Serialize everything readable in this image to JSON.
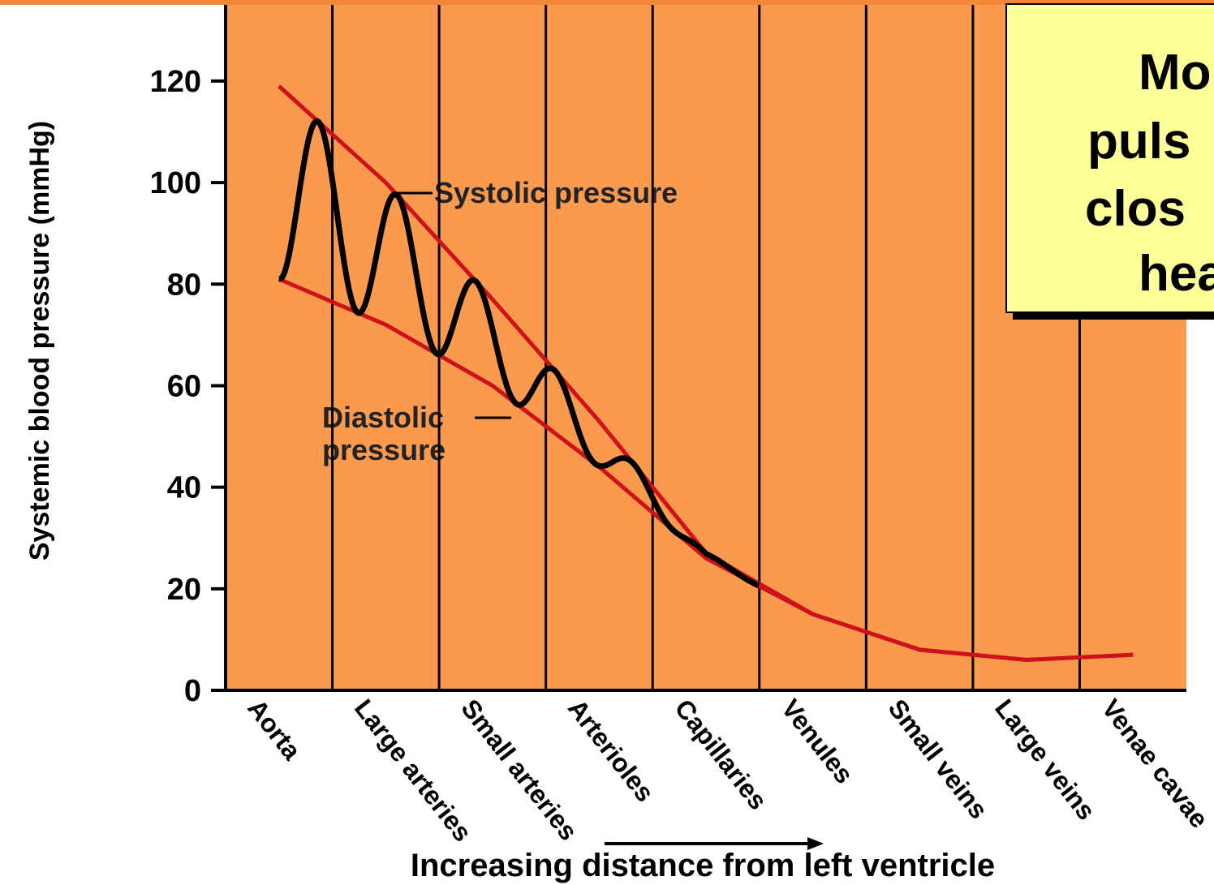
{
  "chart_data": {
    "type": "line",
    "categories": [
      "Aorta",
      "Large arteries",
      "Small arteries",
      "Arterioles",
      "Capillaries",
      "Venules",
      "Small veins",
      "Large veins",
      "Venae cavae"
    ],
    "series": [
      {
        "name": "Systolic pressure",
        "color": "#d0101a",
        "values": [
          119,
          100,
          77,
          53,
          27,
          15,
          8,
          6,
          7
        ]
      },
      {
        "name": "Diastolic pressure",
        "color": "#d0101a",
        "values": [
          81,
          72,
          60,
          44,
          26,
          15,
          8,
          6,
          7
        ]
      }
    ],
    "ylim": [
      0,
      135
    ],
    "yticks": [
      0,
      20,
      40,
      60,
      80,
      100,
      120
    ],
    "y_label": "Systemic blood pressure (mmHg)",
    "x_label": "Increasing distance from left ventricle",
    "annotations": {
      "systolic": "Systolic pressure",
      "diastolic": [
        "Diastolic",
        "pressure"
      ]
    },
    "callout": [
      "Mo",
      "puls",
      "clos",
      "hea"
    ]
  }
}
